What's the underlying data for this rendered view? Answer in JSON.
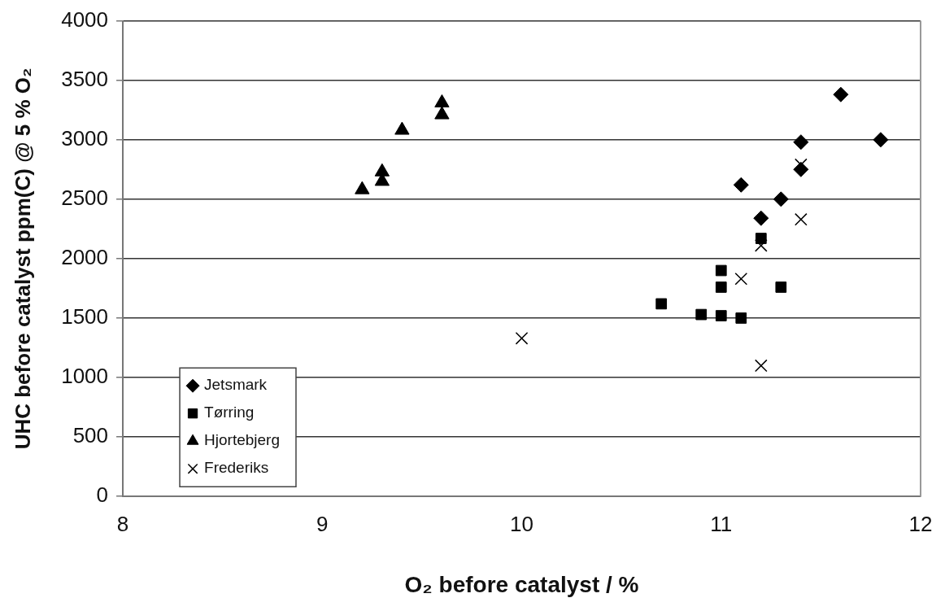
{
  "chart_data": {
    "type": "scatter",
    "xlabel": "O₂ before catalyst / %",
    "ylabel": "UHC before catalyst ppm(C) @ 5 % O₂",
    "xlim": [
      8,
      12
    ],
    "xticks": [
      8,
      9,
      10,
      11,
      12
    ],
    "ylim": [
      0,
      4000
    ],
    "yticks": [
      0,
      500,
      1000,
      1500,
      2000,
      2500,
      3000,
      3500,
      4000
    ],
    "grid": "y",
    "legend": "bottom left",
    "series": [
      {
        "name": "Jetsmark",
        "color": "#000000",
        "marker": "diamond",
        "x": [
          11.6,
          11.8,
          11.4,
          11.4,
          11.1,
          11.3,
          11.2
        ],
        "values": [
          3380,
          3000,
          2980,
          2750,
          2620,
          2500,
          2340
        ]
      },
      {
        "name": "Tørring",
        "color": "#000000",
        "marker": "square",
        "x": [
          11.2,
          11.0,
          11.0,
          11.3,
          10.7,
          10.9,
          11.0,
          11.1
        ],
        "values": [
          2170,
          1900,
          1760,
          1760,
          1620,
          1530,
          1520,
          1500
        ]
      },
      {
        "name": "Hjortebjerg",
        "color": "#000000",
        "marker": "triangle",
        "x": [
          9.2,
          9.3,
          9.3,
          9.4,
          9.6,
          9.6
        ],
        "values": [
          2580,
          2650,
          2730,
          3080,
          3210,
          3310
        ]
      },
      {
        "name": "Frederiks",
        "color": "#000000",
        "marker": "cross",
        "x": [
          10.0,
          11.2,
          11.1,
          11.2,
          11.4,
          11.4
        ],
        "values": [
          1330,
          1100,
          1830,
          2110,
          2330,
          2790
        ]
      }
    ]
  }
}
